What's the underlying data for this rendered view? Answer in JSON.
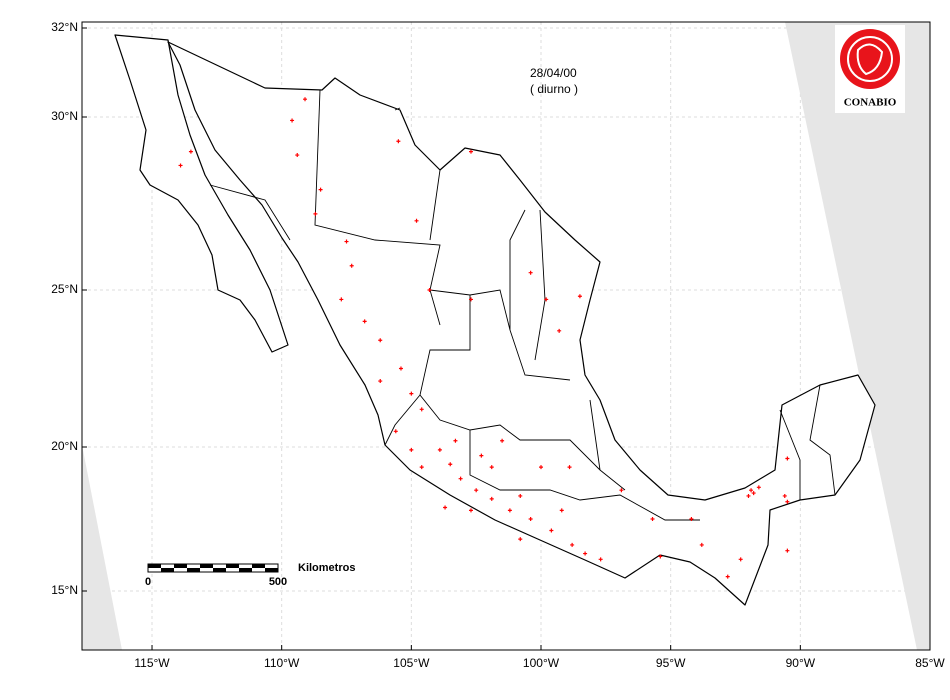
{
  "map": {
    "date": "28/04/00",
    "period": "( diurno )",
    "logo": "CONABIO",
    "xlim": [
      -117.7,
      -85
    ],
    "ylim": [
      13,
      32
    ],
    "lon_ticks": [
      {
        "value": -115,
        "label": "115°W"
      },
      {
        "value": -110,
        "label": "110°W"
      },
      {
        "value": -105,
        "label": "105°W"
      },
      {
        "value": -100,
        "label": "100°W"
      },
      {
        "value": -95,
        "label": "95°W"
      },
      {
        "value": -90,
        "label": "90°W"
      },
      {
        "value": -85,
        "label": "85°W"
      }
    ],
    "lat_ticks": [
      {
        "value": 32,
        "label": "32°N"
      },
      {
        "value": 30,
        "label": "30°N"
      },
      {
        "value": 25,
        "label": "25°N"
      },
      {
        "value": 20,
        "label": "20°N"
      },
      {
        "value": 15,
        "label": "15°N"
      }
    ],
    "scale_bar": {
      "start": 0,
      "end": 500,
      "unit": "Kilometros"
    },
    "hotspot_color": "#ff0000",
    "hotspots": {
      "lon": [
        -109.1,
        -109.6,
        -109.4,
        -108.5,
        -108.7,
        -107.5,
        -107.3,
        -107.7,
        -106.8,
        -106.2,
        -105.4,
        -105.0,
        -104.6,
        -105.6,
        -103.9,
        -103.5,
        -103.1,
        -102.5,
        -101.9,
        -101.2,
        -100.4,
        -99.6,
        -98.8,
        -98.3,
        -97.7,
        -96.9,
        -102.3,
        -101.5,
        -104.6,
        -102.7,
        -100.8,
        -103.7,
        -99.2,
        -99.8,
        -99.3,
        -100.4,
        -102.7,
        -105.5,
        -102.7,
        -104.8,
        -98.5,
        -91.9,
        -91.8,
        -91.6,
        -92.0,
        -90.6,
        -90.5,
        -90.5,
        -90.5,
        -93.8,
        -92.3,
        -94.2,
        -95.4,
        -92.8,
        -113.5,
        -113.9,
        -106.2,
        -95.7,
        -105.0,
        -103.3,
        -101.9,
        -100.0,
        -98.9,
        -100.8,
        -104.3
      ],
      "lat": [
        30.4,
        29.9,
        28.9,
        27.9,
        27.2,
        26.4,
        25.7,
        24.7,
        24.0,
        23.4,
        22.5,
        21.7,
        21.2,
        20.5,
        19.9,
        19.4,
        18.9,
        18.5,
        18.2,
        17.8,
        17.5,
        17.1,
        16.6,
        16.3,
        16.1,
        18.5,
        19.7,
        20.2,
        19.3,
        17.8,
        18.3,
        17.9,
        17.8,
        24.7,
        23.7,
        25.5,
        24.7,
        29.3,
        29.0,
        27.0,
        24.8,
        18.5,
        18.4,
        18.6,
        18.3,
        18.3,
        18.1,
        19.6,
        16.4,
        16.6,
        16.1,
        17.5,
        16.2,
        15.5,
        29.0,
        28.6,
        22.1,
        17.5,
        19.9,
        20.2,
        19.3,
        19.3,
        19.3,
        16.8,
        25.0
      ]
    }
  }
}
